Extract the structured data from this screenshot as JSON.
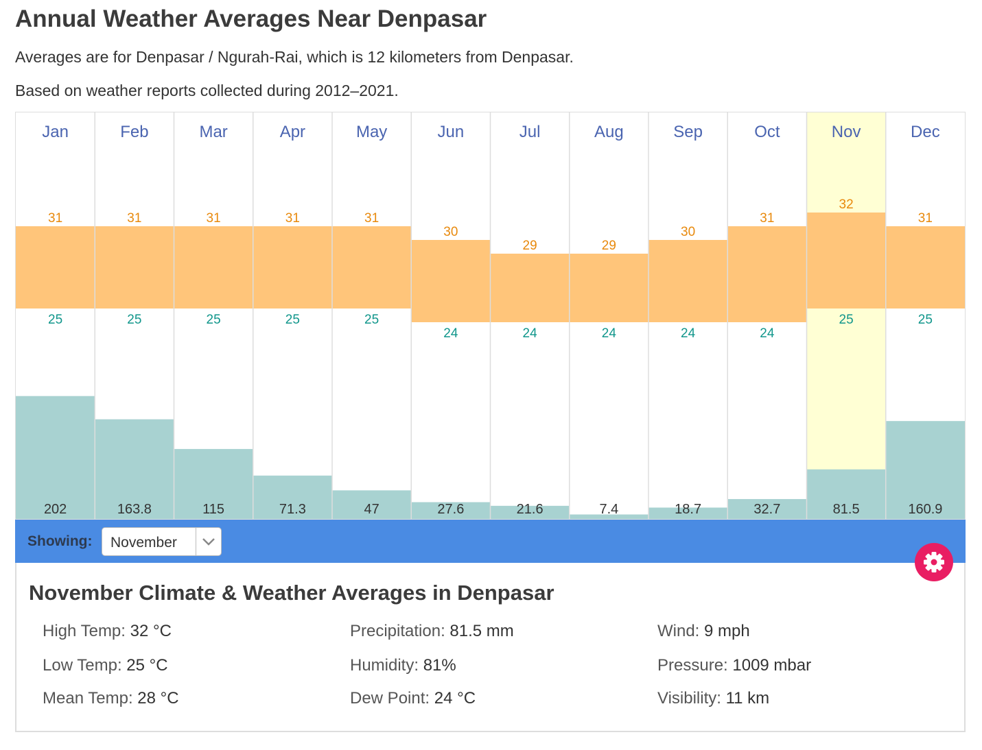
{
  "page": {
    "title": "Annual Weather Averages Near Denpasar",
    "subtitle1": "Averages are for Denpasar / Ngurah-Rai, which is 12 kilometers from Denpasar.",
    "subtitle2": "Based on weather reports collected during 2012–2021."
  },
  "colors": {
    "temp_band": "#ffc57a",
    "high_label": "#e8890c",
    "low_label": "#10968b",
    "precip_bar": "#a8d2d1",
    "month_label": "#4a64b0",
    "highlight": "#ffffd4",
    "showbar": "#4a8be3",
    "gear": "#e91e63"
  },
  "chart_data": {
    "type": "bar",
    "categories": [
      "Jan",
      "Feb",
      "Mar",
      "Apr",
      "May",
      "Jun",
      "Jul",
      "Aug",
      "Sep",
      "Oct",
      "Nov",
      "Dec"
    ],
    "series": [
      {
        "values": [
          31,
          31,
          31,
          31,
          31,
          30,
          29,
          29,
          30,
          31,
          32,
          31
        ]
      },
      {
        "values": [
          25,
          25,
          25,
          25,
          25,
          24,
          24,
          24,
          24,
          24,
          25,
          25
        ]
      },
      {
        "values": [
          202,
          163.8,
          115,
          71.3,
          47,
          27.6,
          21.6,
          7.4,
          18.7,
          32.7,
          81.5,
          160.9
        ]
      }
    ],
    "highlighted_category": "Nov",
    "grid": true,
    "legend": "none"
  },
  "selector": {
    "label": "Showing:",
    "value": "November",
    "chevron_icon": "chevron-down-icon"
  },
  "gear_icon": "gear-icon",
  "details": {
    "heading": "November Climate & Weather Averages in Denpasar",
    "stats": [
      {
        "key": "High Temp:",
        "value": "32 °C"
      },
      {
        "key": "Low Temp:",
        "value": "25 °C"
      },
      {
        "key": "Mean Temp:",
        "value": "28 °C"
      },
      {
        "key": "Precipitation:",
        "value": "81.5 mm"
      },
      {
        "key": "Humidity:",
        "value": "81%"
      },
      {
        "key": "Dew Point:",
        "value": "24 °C"
      },
      {
        "key": "Wind:",
        "value": "9 mph"
      },
      {
        "key": "Pressure:",
        "value": "1009 mbar"
      },
      {
        "key": "Visibility:",
        "value": "11 km"
      }
    ]
  }
}
